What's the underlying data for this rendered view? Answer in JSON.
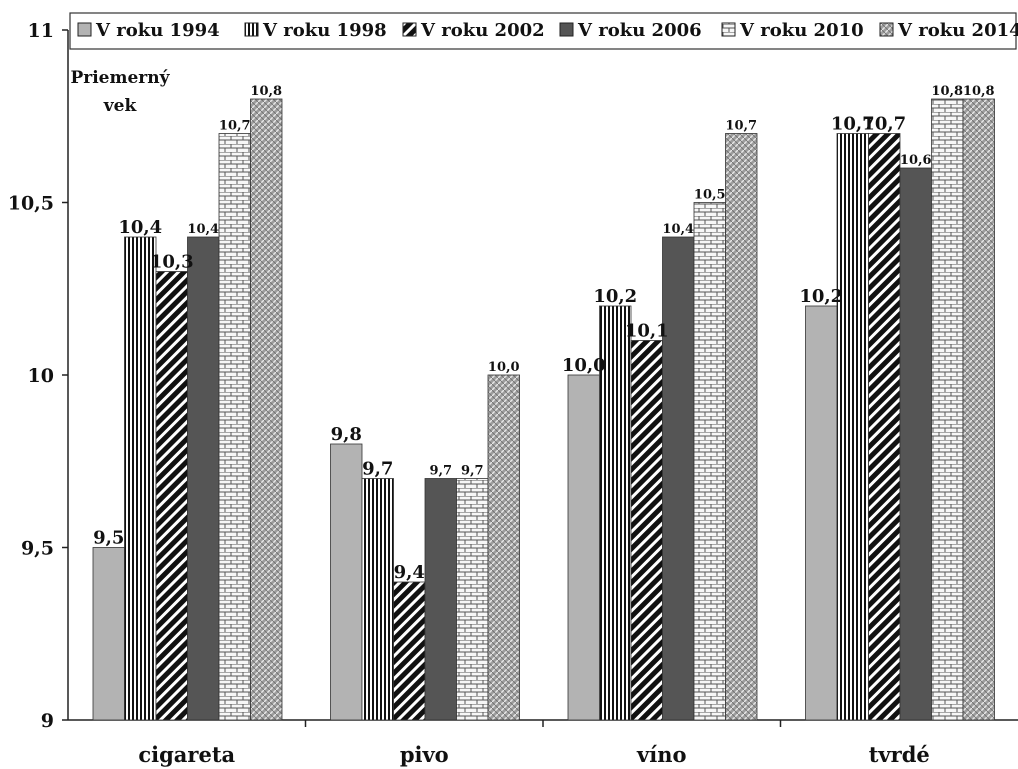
{
  "chart_data": {
    "type": "bar",
    "title": "",
    "xlabel": "",
    "ylabel": "Priemerný vek",
    "ylabel_lines": [
      "Priemerný",
      "vek"
    ],
    "ylim": [
      9,
      11
    ],
    "yticks": [
      9,
      9.5,
      10,
      10.5,
      11
    ],
    "ytick_labels": [
      "9",
      "9,5",
      "10",
      "10,5",
      "11"
    ],
    "grid": false,
    "legend_position": "top",
    "categories": [
      "cigareta",
      "pivo",
      "víno",
      "tvrdé"
    ],
    "series": [
      {
        "name": "V roku 1994",
        "values": [
          9.5,
          9.8,
          10.0,
          10.2
        ],
        "labels": [
          "9,5",
          "9,8",
          "10,0",
          "10,2"
        ],
        "pattern": "solid-light",
        "color": "#b3b3b3"
      },
      {
        "name": "V roku 1998",
        "values": [
          10.4,
          9.7,
          10.2,
          10.7
        ],
        "labels": [
          "10,4",
          "9,7",
          "10,2",
          "10,7"
        ],
        "pattern": "vertical-lines",
        "color": "#222222"
      },
      {
        "name": "V roku 2002",
        "values": [
          10.3,
          9.4,
          10.1,
          10.7
        ],
        "labels": [
          "10,3",
          "9,4",
          "10,1",
          "10,7"
        ],
        "pattern": "diagonal-lines",
        "color": "#111111"
      },
      {
        "name": "V roku 2006",
        "values": [
          10.4,
          9.7,
          10.4,
          10.6
        ],
        "labels": [
          "10,4",
          "9,7",
          "10,4",
          "10,6"
        ],
        "pattern": "solid-dark",
        "color": "#555555"
      },
      {
        "name": "V roku 2010",
        "values": [
          10.7,
          9.7,
          10.5,
          10.8
        ],
        "labels": [
          "10,7",
          "9,7",
          "10,5",
          "10,8"
        ],
        "pattern": "bricks",
        "color": "#f2f2f2"
      },
      {
        "name": "V roku 2014",
        "values": [
          10.8,
          10.0,
          10.7,
          10.8
        ],
        "labels": [
          "10,8",
          "10,0",
          "10,7",
          "10,8"
        ],
        "pattern": "weave",
        "color": "#a6a6a6"
      }
    ]
  }
}
